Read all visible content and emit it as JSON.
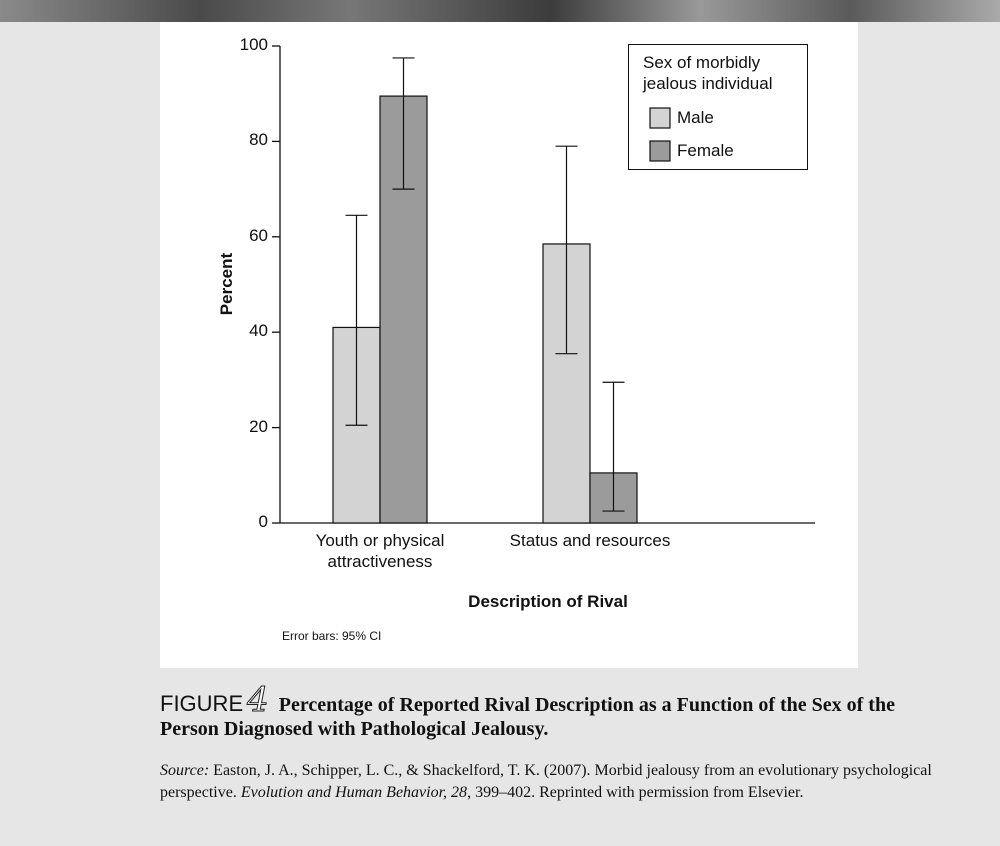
{
  "chart_data": {
    "type": "bar",
    "y_label": "Percent",
    "x_label": "Description of Rival",
    "note": "Error bars: 95% CI",
    "legend_title": "Sex of morbidly jealous individual",
    "categories": [
      "Youth or physical attractiveness",
      "Status and resources"
    ],
    "series": [
      {
        "name": "Male",
        "color": "#d3d3d3",
        "values": [
          41,
          58.5
        ],
        "ci_lower": [
          20.5,
          35.5
        ],
        "ci_upper": [
          64.5,
          79
        ]
      },
      {
        "name": "Female",
        "color": "#9b9b9b",
        "values": [
          89.5,
          10.5
        ],
        "ci_lower": [
          70,
          2.5
        ],
        "ci_upper": [
          97.5,
          29.5
        ]
      }
    ],
    "ylim": [
      0,
      100
    ],
    "yticks": [
      0,
      20,
      40,
      60,
      80,
      100
    ],
    "legend_position": "upper right"
  },
  "caption": {
    "label": "FIGURE",
    "number": "4",
    "title": "Percentage of Reported Rival Description as a Function of the Sex of the Person Diagnosed with Pathological Jealousy.",
    "source_label": "Source:",
    "source_text": "Easton, J. A., Schipper, L. C., & Shackelford, T. K. (2007). Morbid jealousy from an evolutionary psychological perspective.",
    "source_journal": "Evolution and Human Behavior, 28",
    "source_end": ", 399–402. Reprinted with permission from Elsevier."
  }
}
